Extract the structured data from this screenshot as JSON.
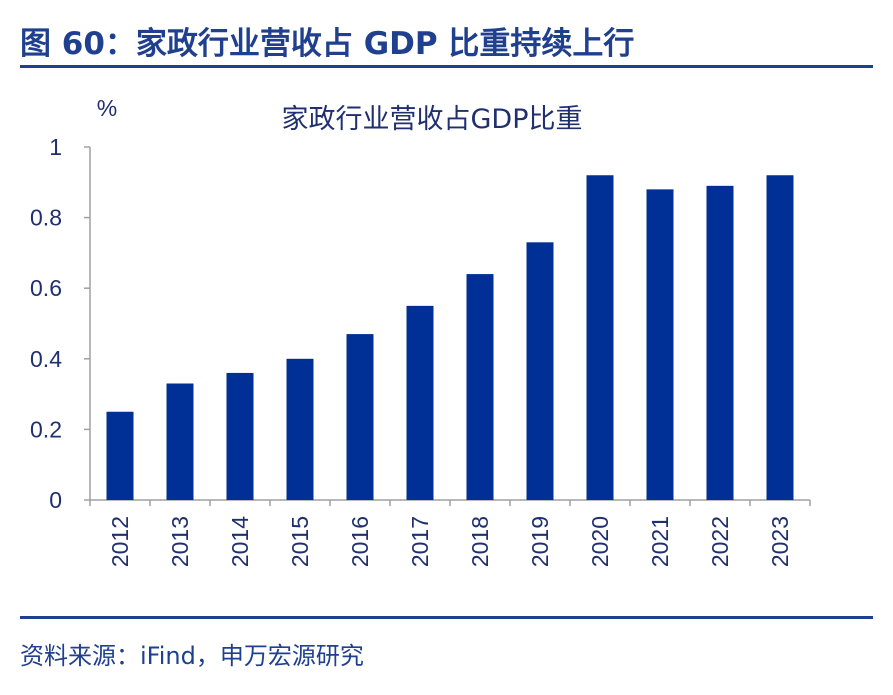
{
  "figure": {
    "title": "图 60：家政行业营收占 GDP 比重持续上行",
    "source": "资料来源：iFind，申万宏源研究"
  },
  "colors": {
    "accent": "#1f3f8f",
    "bar": "#002f96",
    "text": "#1f2f6f",
    "axis": "#a0a0a0"
  },
  "chart_data": {
    "type": "bar",
    "title": "家政行业营收占GDP比重",
    "ylabel": "%",
    "xlabel": "",
    "categories": [
      "2012",
      "2013",
      "2014",
      "2015",
      "2016",
      "2017",
      "2018",
      "2019",
      "2020",
      "2021",
      "2022",
      "2023"
    ],
    "values": [
      0.25,
      0.33,
      0.36,
      0.4,
      0.47,
      0.55,
      0.64,
      0.73,
      0.92,
      0.88,
      0.89,
      0.92
    ],
    "ylim": [
      0,
      1
    ],
    "yticks": [
      "0",
      "0.2",
      "0.4",
      "0.6",
      "0.8",
      "1"
    ],
    "grid": false,
    "legend": "none"
  }
}
